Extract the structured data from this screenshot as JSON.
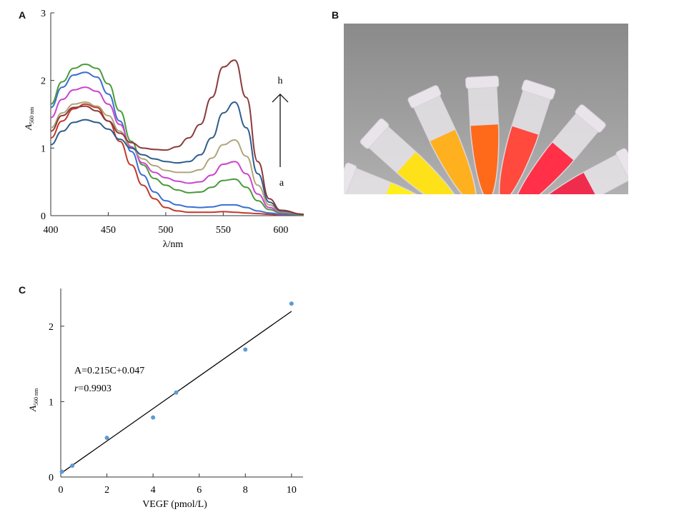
{
  "panels": {
    "a": "A",
    "b": "B",
    "c": "C"
  },
  "chart_data": [
    {
      "type": "line",
      "panel": "A",
      "xlabel": "λ/nm",
      "ylabel_main": "A",
      "ylabel_sub": "560 nm",
      "xlim": [
        400,
        620
      ],
      "ylim": [
        0,
        3
      ],
      "x_ticks": [
        400,
        450,
        500,
        550,
        600
      ],
      "y_ticks": [
        0,
        1,
        2,
        3
      ],
      "annotation_top": "h",
      "annotation_bottom": "a",
      "series": [
        {
          "color": "#c0392b",
          "points": [
            [
              400,
              1.15
            ],
            [
              410,
              1.4
            ],
            [
              420,
              1.58
            ],
            [
              430,
              1.65
            ],
            [
              440,
              1.6
            ],
            [
              450,
              1.4
            ],
            [
              460,
              1.1
            ],
            [
              470,
              0.75
            ],
            [
              480,
              0.45
            ],
            [
              490,
              0.25
            ],
            [
              500,
              0.12
            ],
            [
              510,
              0.07
            ],
            [
              520,
              0.05
            ],
            [
              530,
              0.05
            ],
            [
              540,
              0.05
            ],
            [
              550,
              0.06
            ],
            [
              560,
              0.05
            ],
            [
              570,
              0.04
            ],
            [
              580,
              0.03
            ],
            [
              590,
              0.02
            ],
            [
              600,
              0.01
            ],
            [
              620,
              0.01
            ]
          ]
        },
        {
          "color": "#3b6fd1",
          "points": [
            [
              400,
              1.6
            ],
            [
              410,
              1.9
            ],
            [
              420,
              2.08
            ],
            [
              430,
              2.12
            ],
            [
              440,
              2.05
            ],
            [
              450,
              1.8
            ],
            [
              460,
              1.4
            ],
            [
              470,
              0.95
            ],
            [
              480,
              0.6
            ],
            [
              490,
              0.35
            ],
            [
              500,
              0.22
            ],
            [
              510,
              0.16
            ],
            [
              520,
              0.13
            ],
            [
              530,
              0.12
            ],
            [
              540,
              0.13
            ],
            [
              550,
              0.16
            ],
            [
              560,
              0.16
            ],
            [
              570,
              0.12
            ],
            [
              580,
              0.07
            ],
            [
              590,
              0.04
            ],
            [
              600,
              0.02
            ],
            [
              620,
              0.01
            ]
          ]
        },
        {
          "color": "#4a9a3a",
          "points": [
            [
              400,
              1.65
            ],
            [
              410,
              1.98
            ],
            [
              420,
              2.18
            ],
            [
              430,
              2.24
            ],
            [
              440,
              2.18
            ],
            [
              450,
              1.95
            ],
            [
              460,
              1.55
            ],
            [
              470,
              1.1
            ],
            [
              480,
              0.75
            ],
            [
              490,
              0.55
            ],
            [
              500,
              0.45
            ],
            [
              510,
              0.38
            ],
            [
              520,
              0.34
            ],
            [
              530,
              0.35
            ],
            [
              540,
              0.42
            ],
            [
              550,
              0.52
            ],
            [
              560,
              0.54
            ],
            [
              570,
              0.42
            ],
            [
              580,
              0.22
            ],
            [
              590,
              0.09
            ],
            [
              600,
              0.04
            ],
            [
              620,
              0.01
            ]
          ]
        },
        {
          "color": "#cc44cc",
          "points": [
            [
              400,
              1.45
            ],
            [
              410,
              1.72
            ],
            [
              420,
              1.86
            ],
            [
              430,
              1.9
            ],
            [
              440,
              1.84
            ],
            [
              450,
              1.65
            ],
            [
              460,
              1.35
            ],
            [
              470,
              1.02
            ],
            [
              480,
              0.78
            ],
            [
              490,
              0.64
            ],
            [
              500,
              0.56
            ],
            [
              510,
              0.51
            ],
            [
              520,
              0.48
            ],
            [
              530,
              0.5
            ],
            [
              540,
              0.6
            ],
            [
              550,
              0.76
            ],
            [
              560,
              0.8
            ],
            [
              570,
              0.62
            ],
            [
              580,
              0.32
            ],
            [
              590,
              0.12
            ],
            [
              600,
              0.05
            ],
            [
              620,
              0.02
            ]
          ]
        },
        {
          "color": "#b2a57a",
          "points": [
            [
              400,
              1.3
            ],
            [
              410,
              1.52
            ],
            [
              420,
              1.65
            ],
            [
              430,
              1.68
            ],
            [
              440,
              1.62
            ],
            [
              450,
              1.48
            ],
            [
              460,
              1.25
            ],
            [
              470,
              1.0
            ],
            [
              480,
              0.84
            ],
            [
              490,
              0.74
            ],
            [
              500,
              0.67
            ],
            [
              510,
              0.64
            ],
            [
              520,
              0.64
            ],
            [
              530,
              0.68
            ],
            [
              540,
              0.85
            ],
            [
              550,
              1.05
            ],
            [
              560,
              1.12
            ],
            [
              570,
              0.88
            ],
            [
              580,
              0.45
            ],
            [
              590,
              0.16
            ],
            [
              600,
              0.06
            ],
            [
              620,
              0.02
            ]
          ]
        },
        {
          "color": "#2e5e8c",
          "points": [
            [
              400,
              1.05
            ],
            [
              410,
              1.25
            ],
            [
              420,
              1.38
            ],
            [
              430,
              1.42
            ],
            [
              440,
              1.38
            ],
            [
              450,
              1.28
            ],
            [
              460,
              1.13
            ],
            [
              470,
              1.0
            ],
            [
              480,
              0.9
            ],
            [
              490,
              0.84
            ],
            [
              500,
              0.8
            ],
            [
              510,
              0.78
            ],
            [
              520,
              0.8
            ],
            [
              530,
              0.9
            ],
            [
              540,
              1.15
            ],
            [
              550,
              1.52
            ],
            [
              560,
              1.68
            ],
            [
              570,
              1.3
            ],
            [
              580,
              0.62
            ],
            [
              590,
              0.2
            ],
            [
              600,
              0.07
            ],
            [
              620,
              0.02
            ]
          ]
        },
        {
          "color": "#8b3a3a",
          "points": [
            [
              400,
              1.25
            ],
            [
              410,
              1.48
            ],
            [
              420,
              1.6
            ],
            [
              430,
              1.62
            ],
            [
              440,
              1.55
            ],
            [
              450,
              1.4
            ],
            [
              460,
              1.22
            ],
            [
              470,
              1.08
            ],
            [
              480,
              1.0
            ],
            [
              490,
              0.98
            ],
            [
              500,
              0.97
            ],
            [
              510,
              1.02
            ],
            [
              520,
              1.15
            ],
            [
              530,
              1.35
            ],
            [
              540,
              1.75
            ],
            [
              550,
              2.2
            ],
            [
              560,
              2.3
            ],
            [
              570,
              1.75
            ],
            [
              580,
              0.8
            ],
            [
              590,
              0.25
            ],
            [
              600,
              0.08
            ],
            [
              620,
              0.02
            ]
          ]
        }
      ]
    },
    {
      "type": "scatter",
      "panel": "C",
      "xlabel": "VEGF (pmol/L)",
      "ylabel_main": "A",
      "ylabel_sub": "560 nm",
      "xlim": [
        0,
        10.5
      ],
      "ylim": [
        0,
        2.5
      ],
      "x_ticks": [
        0,
        2,
        4,
        6,
        8,
        10
      ],
      "y_ticks": [
        0,
        1,
        2
      ],
      "equation": "A=0.215C+0.047",
      "r_label": "r",
      "r_value": "=0.9903",
      "fit": {
        "slope": 0.215,
        "intercept": 0.047,
        "x_range": [
          0,
          10
        ]
      },
      "points": [
        [
          0.05,
          0.07
        ],
        [
          0.5,
          0.15
        ],
        [
          2,
          0.52
        ],
        [
          4,
          0.79
        ],
        [
          5,
          1.12
        ],
        [
          8,
          1.69
        ],
        [
          10,
          2.3
        ]
      ],
      "point_color": "#5b9bd5"
    }
  ]
}
